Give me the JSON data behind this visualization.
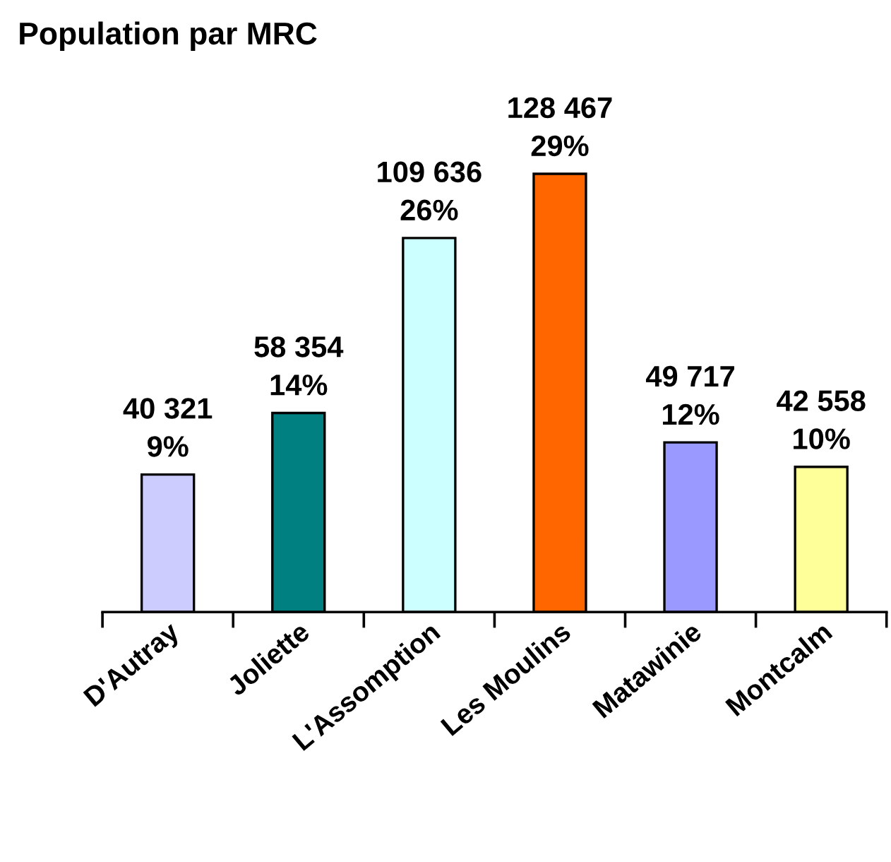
{
  "chart_data": {
    "type": "bar",
    "title": "Population par MRC",
    "categories": [
      "D'Autray",
      "Joliette",
      "L'Assomption",
      "Les Moulins",
      "Matawinie",
      "Montcalm"
    ],
    "values": [
      40321,
      58354,
      109636,
      128467,
      49717,
      42558
    ],
    "colors": [
      "#ccccff",
      "#008080",
      "#ccffff",
      "#ff6600",
      "#9999ff",
      "#ffff99"
    ],
    "value_labels": [
      "40 321\n9%",
      "58 354\n14%",
      "109 636\n26%",
      "128 467\n29%",
      "49 717\n12%",
      "42 558\n10%"
    ],
    "tick_labels": "x",
    "grid": false,
    "legend": false
  }
}
